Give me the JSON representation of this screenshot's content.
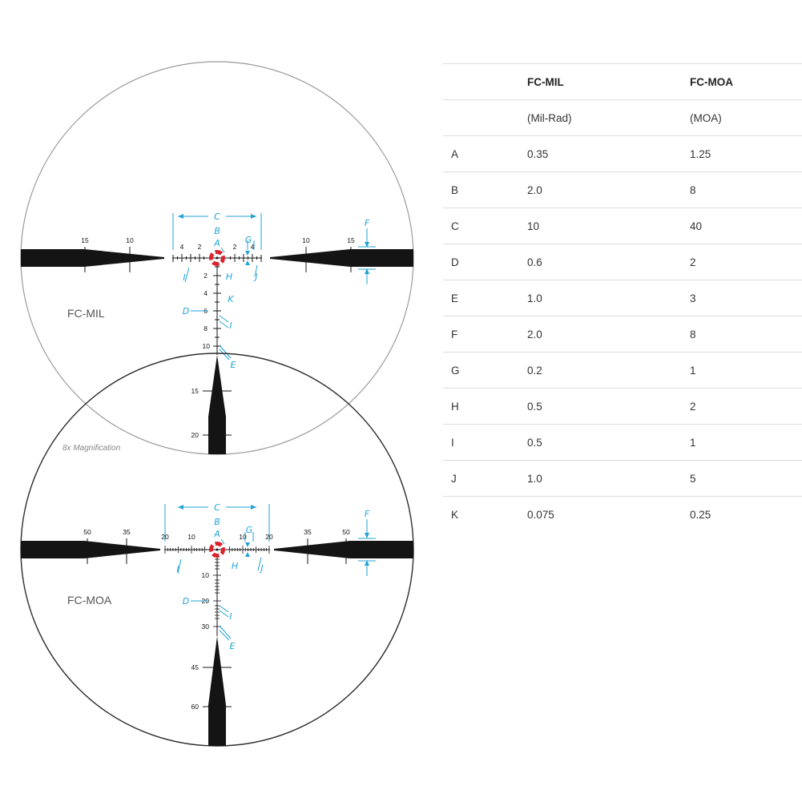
{
  "colors": {
    "accent": "#22a3d6",
    "reticle": "#141414",
    "dot": "#d9232e",
    "circle_mil": "#9a9a9a",
    "circle_moa": "#2e2e2e"
  },
  "reticle_mil": {
    "name": "FC-MIL",
    "letters": {
      "a": "A",
      "b": "B",
      "c": "C",
      "d": "D",
      "e": "E",
      "f": "F",
      "g": "G",
      "h": "H",
      "i": "I",
      "j": "J",
      "k": "K"
    },
    "horizontal_labels": {
      "far_left": "15",
      "mid_left": "10",
      "near_left": "4",
      "inner_left": "2",
      "inner_right": "2",
      "near_right": "4",
      "mid_right": "10",
      "far_right": "15"
    },
    "vertical_labels": [
      "2",
      "4",
      "6",
      "8",
      "10",
      "15",
      "20"
    ]
  },
  "reticle_moa": {
    "name": "FC-MOA",
    "magnification": "8x Magnification",
    "letters": {
      "a": "A",
      "b": "B",
      "c": "C",
      "d": "D",
      "e": "E",
      "f": "F",
      "g": "G",
      "h": "H",
      "i": "I",
      "j": "J"
    },
    "horizontal_labels": {
      "far_left": "50",
      "mid_left": "35",
      "near_left": "20",
      "inner_left": "10",
      "inner_right": "10",
      "near_right": "20",
      "mid_right": "35",
      "far_right": "50"
    },
    "vertical_labels": [
      "10",
      "20",
      "30",
      "45",
      "60"
    ]
  },
  "table": {
    "header": [
      "",
      "FC-MIL",
      "FC-MOA"
    ],
    "subheader": [
      "",
      "(Mil-Rad)",
      "(MOA)"
    ],
    "rows": [
      [
        "A",
        "0.35",
        "1.25"
      ],
      [
        "B",
        "2.0",
        "8"
      ],
      [
        "C",
        "10",
        "40"
      ],
      [
        "D",
        "0.6",
        "2"
      ],
      [
        "E",
        "1.0",
        "3"
      ],
      [
        "F",
        "2.0",
        "8"
      ],
      [
        "G",
        "0.2",
        "1"
      ],
      [
        "H",
        "0.5",
        "2"
      ],
      [
        "I",
        "0.5",
        "1"
      ],
      [
        "J",
        "1.0",
        "5"
      ],
      [
        "K",
        "0.075",
        "0.25"
      ]
    ]
  }
}
